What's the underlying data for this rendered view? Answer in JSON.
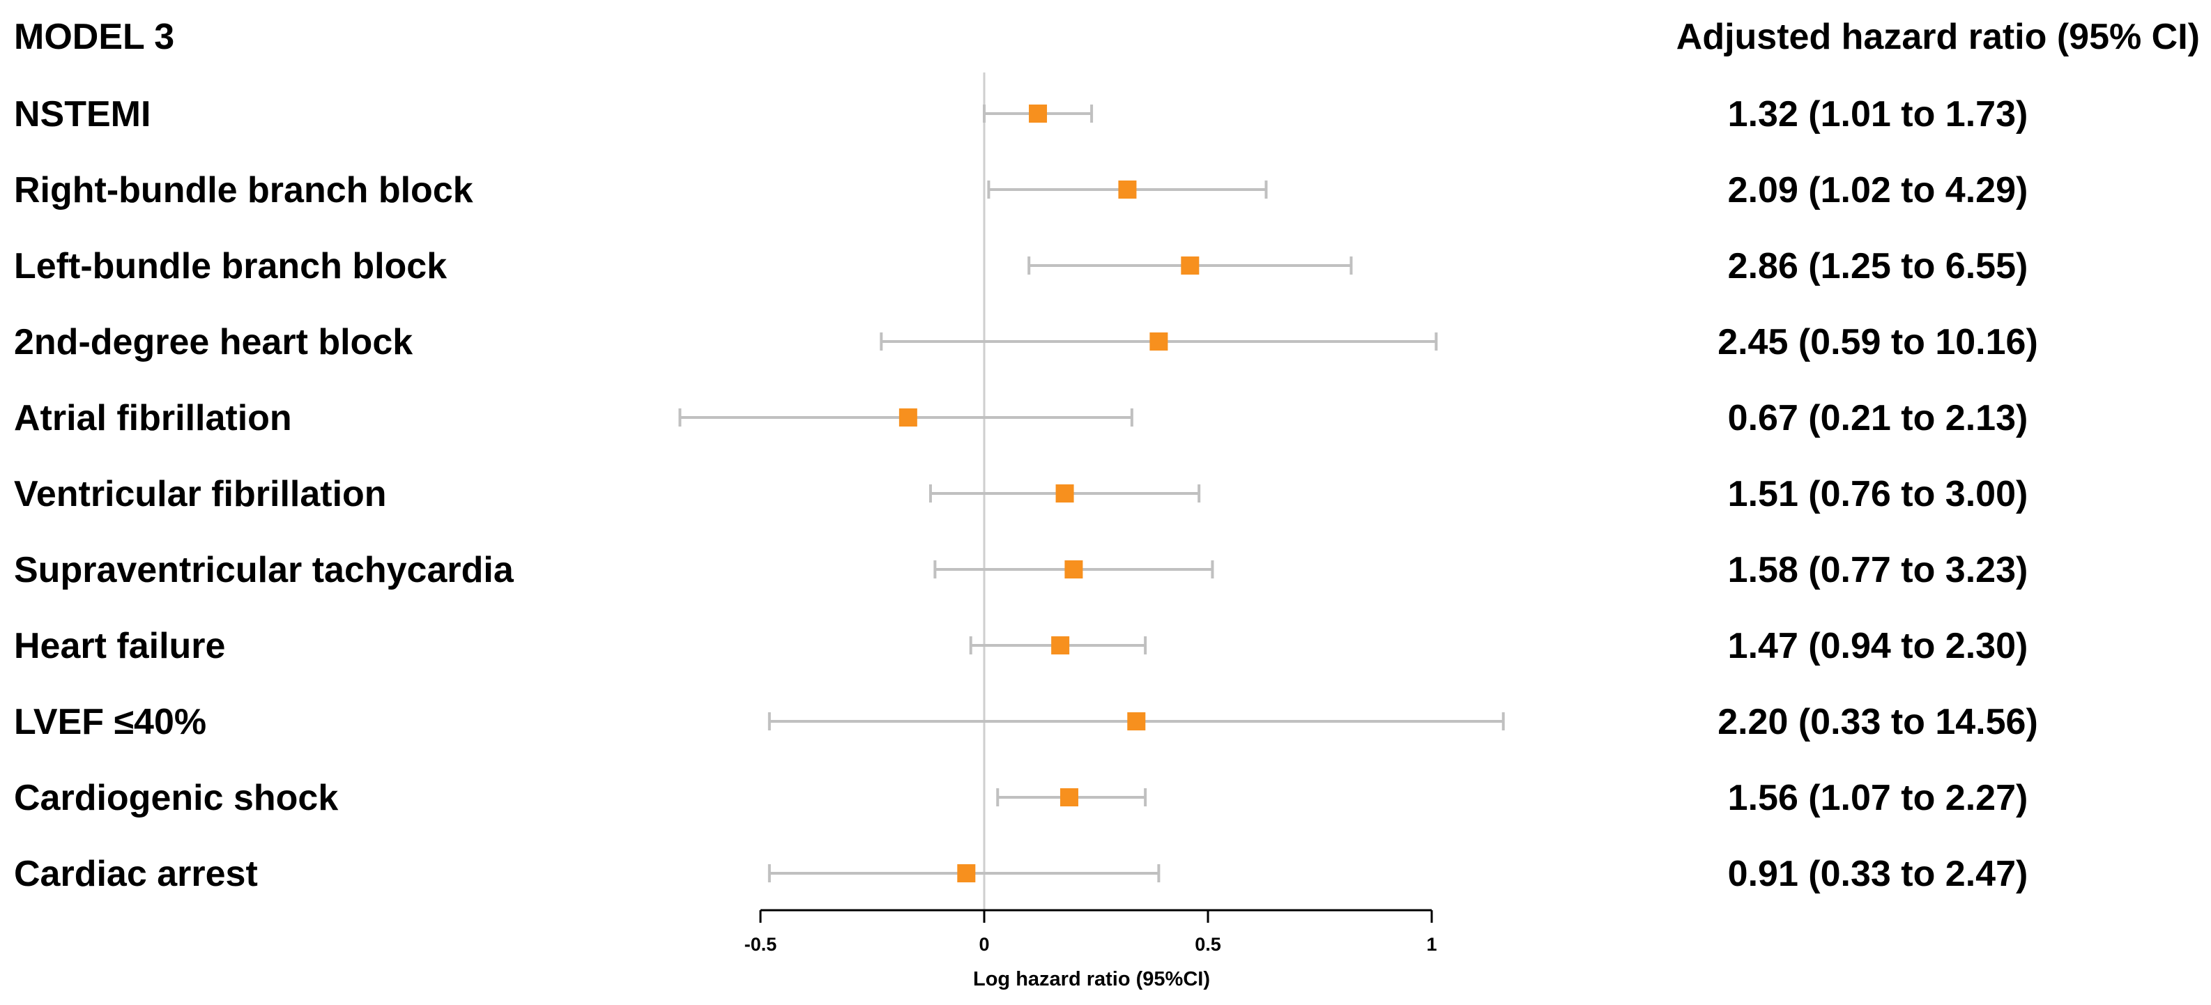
{
  "chart_data": {
    "type": "forest",
    "model_title": "MODEL 3",
    "right_header": "Adjusted hazard ratio (95% CI)",
    "xlabel": "Log hazard ratio (95%CI)",
    "xlim": [
      -0.5,
      1
    ],
    "xticks": [
      "-0.5",
      "0",
      "0.5",
      "1"
    ],
    "reference_line": 0,
    "marker_color": "#f7901e",
    "ci_color": "#c0c0c0",
    "rows": [
      {
        "label": "NSTEMI",
        "estimate": 0.12,
        "lo": 0.0,
        "hi": 0.24,
        "text": "1.32 (1.01 to 1.73)"
      },
      {
        "label": "Right-bundle branch block",
        "estimate": 0.32,
        "lo": 0.01,
        "hi": 0.63,
        "text": "2.09 (1.02 to 4.29)"
      },
      {
        "label": "Left-bundle branch block",
        "estimate": 0.46,
        "lo": 0.1,
        "hi": 0.82,
        "text": "2.86 (1.25 to 6.55)"
      },
      {
        "label": "2nd-degree heart block",
        "estimate": 0.39,
        "lo": -0.23,
        "hi": 1.01,
        "text": "2.45 (0.59 to 10.16)"
      },
      {
        "label": "Atrial fibrillation",
        "estimate": -0.17,
        "lo": -0.68,
        "hi": 0.33,
        "text": "0.67 (0.21 to 2.13)"
      },
      {
        "label": "Ventricular fibrillation",
        "estimate": 0.18,
        "lo": -0.12,
        "hi": 0.48,
        "text": "1.51 (0.76 to 3.00)"
      },
      {
        "label": "Supraventricular tachycardia",
        "estimate": 0.2,
        "lo": -0.11,
        "hi": 0.51,
        "text": "1.58 (0.77 to 3.23)"
      },
      {
        "label": "Heart failure",
        "estimate": 0.17,
        "lo": -0.03,
        "hi": 0.36,
        "text": "1.47 (0.94 to 2.30)"
      },
      {
        "label": "LVEF ≤40%",
        "estimate": 0.34,
        "lo": -0.48,
        "hi": 1.16,
        "text": "2.20 (0.33 to 14.56)"
      },
      {
        "label": "Cardiogenic shock",
        "estimate": 0.19,
        "lo": 0.03,
        "hi": 0.36,
        "text": "1.56 (1.07 to 2.27)"
      },
      {
        "label": "Cardiac arrest",
        "estimate": -0.04,
        "lo": -0.48,
        "hi": 0.39,
        "text": "0.91 (0.33 to 2.47)"
      }
    ]
  }
}
